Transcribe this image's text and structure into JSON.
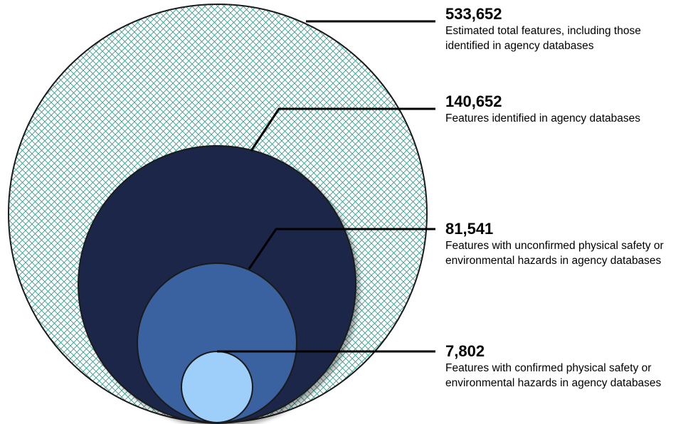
{
  "colors": {
    "hatch_stroke": "#3d9b8f",
    "hatch_background": "#ffffff",
    "identified_fill": "#1a2848",
    "unconfirmed_fill": "#3a62a0",
    "confirmed_fill": "#9ecffa",
    "outline": "#1a1a1a",
    "shadow": "#b5b5b5"
  },
  "circles": [
    {
      "id": "total",
      "value": "533,652",
      "description": "Estimated total features, including those identified in agency databases"
    },
    {
      "id": "identified",
      "value": "140,652",
      "description": "Features identified in agency databases"
    },
    {
      "id": "unconfirmed",
      "value": "81,541",
      "description": "Features with unconfirmed physical safety or environmental hazards in agency databases"
    },
    {
      "id": "confirmed",
      "value": "7,802",
      "description": "Features with confirmed physical safety or environmental hazards in agency databases"
    }
  ]
}
